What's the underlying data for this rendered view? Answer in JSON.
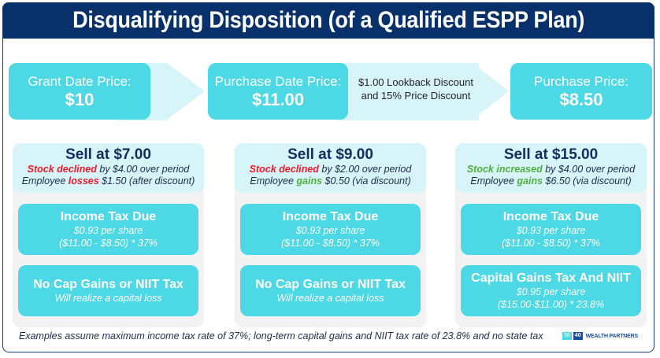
{
  "header": {
    "title": "Disqualifying Disposition (of a Qualified ESPP Plan)"
  },
  "price_flow": {
    "grant": {
      "label": "Grant Date Price:",
      "value": "$10"
    },
    "purchase_date": {
      "label": "Purchase Date Price:",
      "value": "$11.00"
    },
    "discount_note": {
      "line1": "$1.00 Lookback Discount",
      "line2": "and 15% Price Discount"
    },
    "purchase_price": {
      "label": "Purchase Price:",
      "value": "$8.50"
    }
  },
  "scenarios": [
    {
      "title": "Sell at $7.00",
      "line1": {
        "highlight": "Stock declined",
        "highlight_color": "#f0192a",
        "rest": " by $4.00 over period"
      },
      "line2": {
        "prefix": "Employee ",
        "highlight": "losses",
        "highlight_color": "#f0192a",
        "rest": " $1.50 (after discount)"
      },
      "box1": {
        "title": "Income Tax Due",
        "sub1": "$0.93 per share",
        "sub2": "($11.00 - $8.50) * 37%"
      },
      "box2": {
        "title": "No Cap Gains or NIIT Tax",
        "sub1": "Will realize a capital loss",
        "sub2": ""
      }
    },
    {
      "title": "Sell at $9.00",
      "line1": {
        "highlight": "Stock declined",
        "highlight_color": "#f0192a",
        "rest": " by $2.00 over period"
      },
      "line2": {
        "prefix": "Employee ",
        "highlight": "gains",
        "highlight_color": "#4faf3f",
        "rest": " $0.50 (via discount)"
      },
      "box1": {
        "title": "Income Tax Due",
        "sub1": "$0.93 per share",
        "sub2": "($11.00 - $8.50) * 37%"
      },
      "box2": {
        "title": "No Cap Gains or NIIT Tax",
        "sub1": "Will realize a capital loss",
        "sub2": ""
      }
    },
    {
      "title": "Sell at $15.00",
      "line1": {
        "highlight": "Stock increased",
        "highlight_color": "#4faf3f",
        "rest": " by $4.00 over period"
      },
      "line2": {
        "prefix": "Employee ",
        "highlight": "gains",
        "highlight_color": "#4faf3f",
        "rest": " $6.50 (via discount)"
      },
      "box1": {
        "title": "Income Tax Due",
        "sub1": "$0.93 per share",
        "sub2": "($11.00 - $8.50) * 37%"
      },
      "box2": {
        "title": "Capital Gains Tax And NIIT",
        "sub1": "$0.95 per share",
        "sub2": "($15.00-$11.00) * 23.8%"
      }
    }
  ],
  "footnote": "Examples assume maximum income tax rate of 37%; long-term capital gains and NIIT tax rate of 23.8% and no state tax",
  "logo": {
    "num1": "30",
    "num2": "40",
    "text": "WEALTH PARTNERS"
  },
  "colors": {
    "navy": "#08306b",
    "cyan": "#4cd8e4",
    "light_cyan": "#d7f5f8",
    "red": "#f0192a",
    "green": "#4faf3f",
    "panel_gray": "#f2f2f2"
  }
}
